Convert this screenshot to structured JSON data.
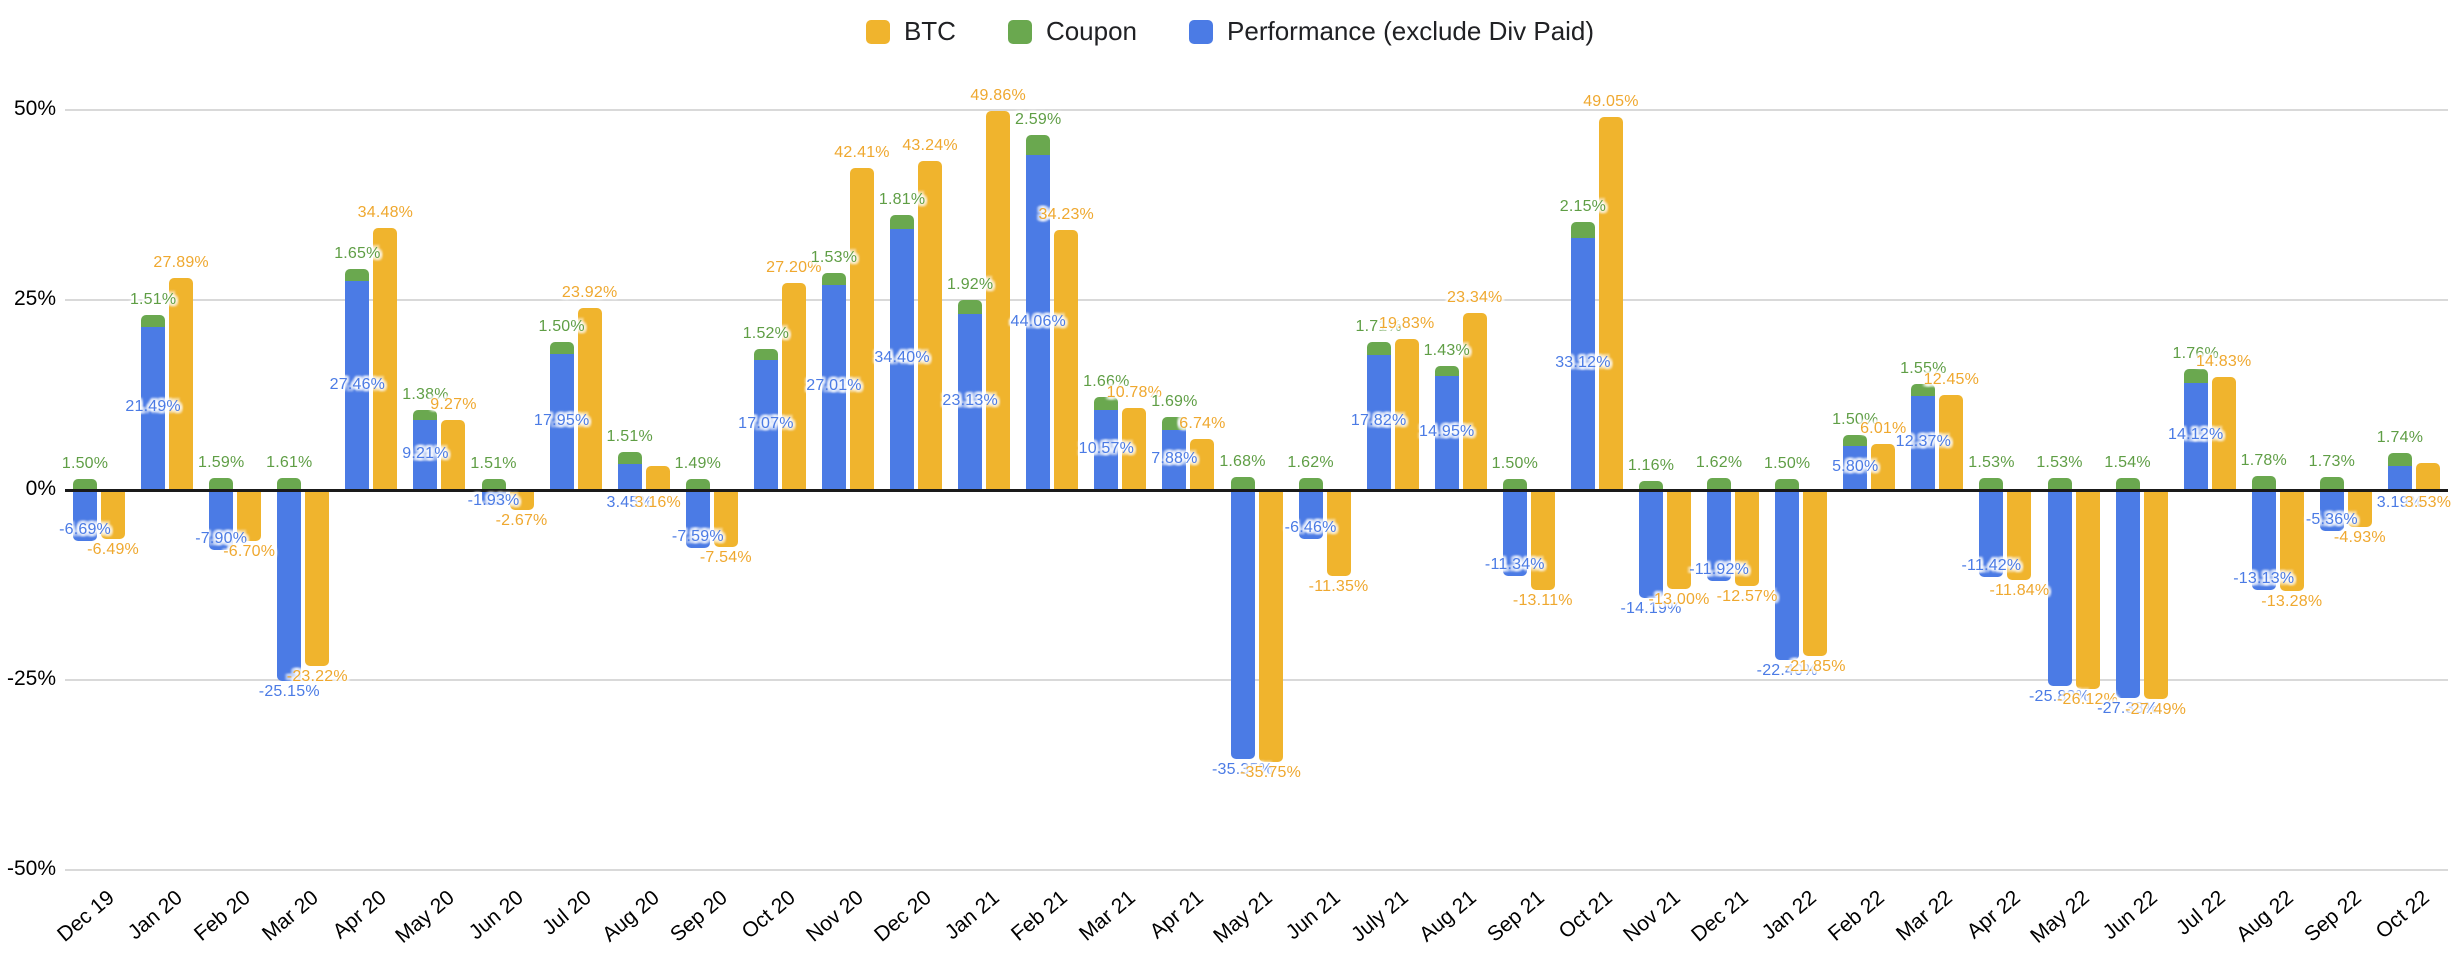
{
  "legend": {
    "items": [
      {
        "label": "BTC",
        "color": "#F0B42D"
      },
      {
        "label": "Coupon",
        "color": "#6AA84F"
      },
      {
        "label": "Performance (exclude Div Paid)",
        "color": "#4B7BE5"
      }
    ]
  },
  "chart_data": {
    "type": "bar",
    "title": "",
    "xlabel": "",
    "ylabel": "",
    "grid": true,
    "legend_position": "top",
    "stacking": "Coupon is stacked on top of Performance (exclude Div Paid); BTC is a separate column per month",
    "y_axis": {
      "range": [
        -50,
        50
      ],
      "ticks": [
        {
          "label": "50%",
          "value": 50
        },
        {
          "label": "25%",
          "value": 25
        },
        {
          "label": "0%",
          "value": 0
        },
        {
          "label": "-25%",
          "value": -25
        },
        {
          "label": "-50%",
          "value": -50
        }
      ]
    },
    "categories": [
      "Dec 19",
      "Jan 20",
      "Feb 20",
      "Mar 20",
      "Apr 20",
      "May 20",
      "Jun 20",
      "Jul 20",
      "Aug 20",
      "Sep 20",
      "Oct 20",
      "Nov 20",
      "Dec 20",
      "Jan 21",
      "Feb 21",
      "Mar 21",
      "Apr 21",
      "May 21",
      "Jun 21",
      "July 21",
      "Aug 21",
      "Sep 21",
      "Oct 21",
      "Nov 21",
      "Dec 21",
      "Jan 22",
      "Feb 22",
      "Mar 22",
      "Apr 22",
      "May 22",
      "Jun 22",
      "Jul 22",
      "Aug 22",
      "Sep 22",
      "Oct 22"
    ],
    "series": [
      {
        "name": "BTC",
        "color": "#F0B42D",
        "label_color": "#EFA82F",
        "values": [
          -6.49,
          27.89,
          -6.7,
          -23.22,
          34.48,
          9.27,
          -2.67,
          23.92,
          3.16,
          -7.54,
          27.2,
          42.41,
          43.24,
          49.86,
          34.23,
          10.78,
          6.74,
          -35.75,
          -11.35,
          19.83,
          23.34,
          -13.11,
          49.05,
          -13.0,
          -12.57,
          -21.85,
          6.01,
          12.45,
          -11.84,
          -26.12,
          -27.49,
          14.83,
          -13.28,
          -4.93,
          3.53
        ]
      },
      {
        "name": "Coupon",
        "color": "#6AA84F",
        "label_color": "#5F9E45",
        "values": [
          1.5,
          1.51,
          1.59,
          1.61,
          1.65,
          1.38,
          1.51,
          1.5,
          1.51,
          1.49,
          1.52,
          1.53,
          1.81,
          1.92,
          2.59,
          1.66,
          1.69,
          1.68,
          1.62,
          1.71,
          1.43,
          1.5,
          2.15,
          1.16,
          1.62,
          1.5,
          1.5,
          1.55,
          1.53,
          1.53,
          1.54,
          1.76,
          1.78,
          1.73,
          1.74
        ]
      },
      {
        "name": "Performance (exclude Div Paid)",
        "color": "#4B7BE5",
        "label_color": "#4B7BE5",
        "values": [
          -6.69,
          21.49,
          -7.9,
          -25.15,
          27.46,
          9.21,
          -1.93,
          17.95,
          3.45,
          -7.59,
          17.07,
          27.01,
          34.4,
          23.13,
          44.06,
          10.57,
          7.88,
          -35.35,
          -6.46,
          17.82,
          14.95,
          -11.34,
          33.12,
          -14.19,
          -11.92,
          -22.4,
          5.8,
          12.37,
          -11.42,
          -25.83,
          -27.38,
          14.12,
          -13.13,
          -5.36,
          3.19
        ]
      }
    ]
  }
}
